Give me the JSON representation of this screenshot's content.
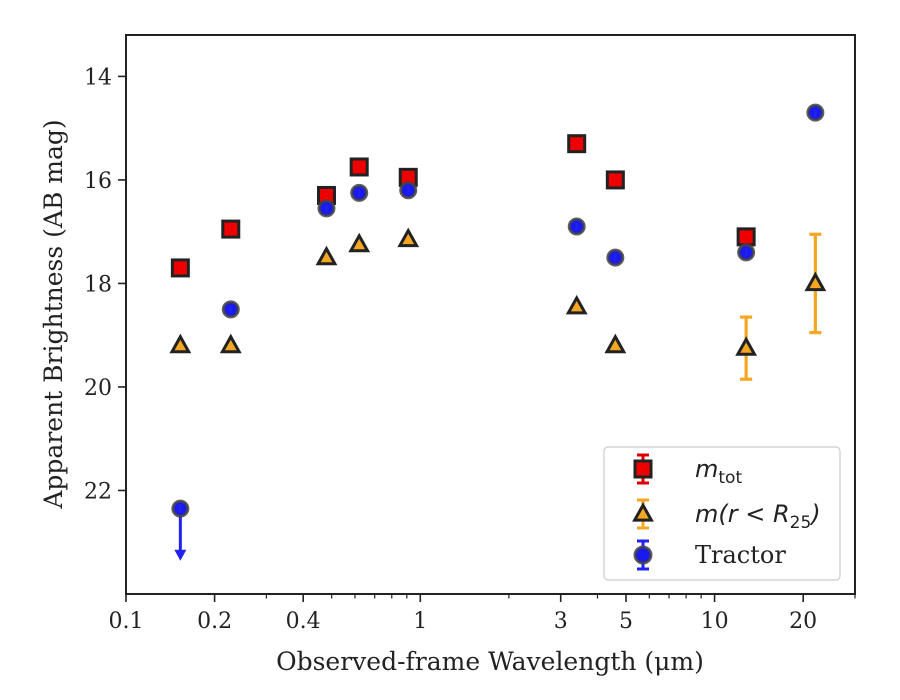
{
  "chart_data": {
    "type": "scatter",
    "xlabel": "Observed-frame Wavelength (μm)",
    "ylabel": "Apparent Brightness (AB mag)",
    "x_scale": "log",
    "y_inverted": true,
    "xlim": [
      0.1,
      30
    ],
    "ylim": [
      24,
      13.2
    ],
    "x_ticks": [
      0.1,
      0.2,
      0.4,
      1,
      3,
      5,
      10,
      20
    ],
    "x_tick_labels": [
      "0.1",
      "0.2",
      "0.4",
      "1",
      "3",
      "5",
      "10",
      "20"
    ],
    "y_ticks": [
      14,
      16,
      18,
      20,
      22
    ],
    "y_tick_labels": [
      "14",
      "16",
      "18",
      "20",
      "22"
    ],
    "grid": false,
    "legend_position": "bottom-right",
    "series": [
      {
        "name": "m_tot",
        "legend_main": "m",
        "legend_sub": "tot",
        "marker": "square",
        "color": "#ee0000",
        "edge_color": "#222222",
        "x": [
          0.153,
          0.227,
          0.48,
          0.62,
          0.91,
          3.4,
          4.6,
          12.8
        ],
        "y": [
          17.7,
          16.95,
          16.3,
          15.75,
          15.95,
          15.3,
          16.0,
          17.1
        ],
        "yerr": [
          0.1,
          0.1,
          0.1,
          0.1,
          0.1,
          0.1,
          0.1,
          0.1
        ]
      },
      {
        "name": "m(r < R25)",
        "legend_main": "m(r < R",
        "legend_sub": "25",
        "legend_tail": ")",
        "marker": "triangle",
        "color": "#f5a623",
        "edge_color": "#222222",
        "x": [
          0.153,
          0.227,
          0.48,
          0.62,
          0.91,
          3.4,
          4.6,
          12.8,
          22
        ],
        "y": [
          19.2,
          19.2,
          17.5,
          17.25,
          17.15,
          18.45,
          19.2,
          19.25,
          18.0
        ],
        "yerr": [
          0.15,
          0.08,
          0.08,
          0.08,
          0.08,
          0.08,
          0.08,
          0.6,
          0.95
        ]
      },
      {
        "name": "Tractor",
        "marker": "circle",
        "color": "#1a1aee",
        "edge_color": "#444444",
        "x": [
          0.153,
          0.227,
          0.48,
          0.62,
          0.91,
          3.4,
          4.6,
          12.8,
          22
        ],
        "y": [
          22.35,
          18.5,
          16.55,
          16.25,
          16.2,
          16.9,
          17.5,
          17.4,
          14.7
        ],
        "yerr": [
          0.1,
          0.1,
          0.1,
          0.1,
          0.1,
          0.1,
          0.1,
          0.1,
          0.1
        ],
        "upper_limit_index": 0,
        "upper_limit_to": 23.3
      }
    ]
  }
}
